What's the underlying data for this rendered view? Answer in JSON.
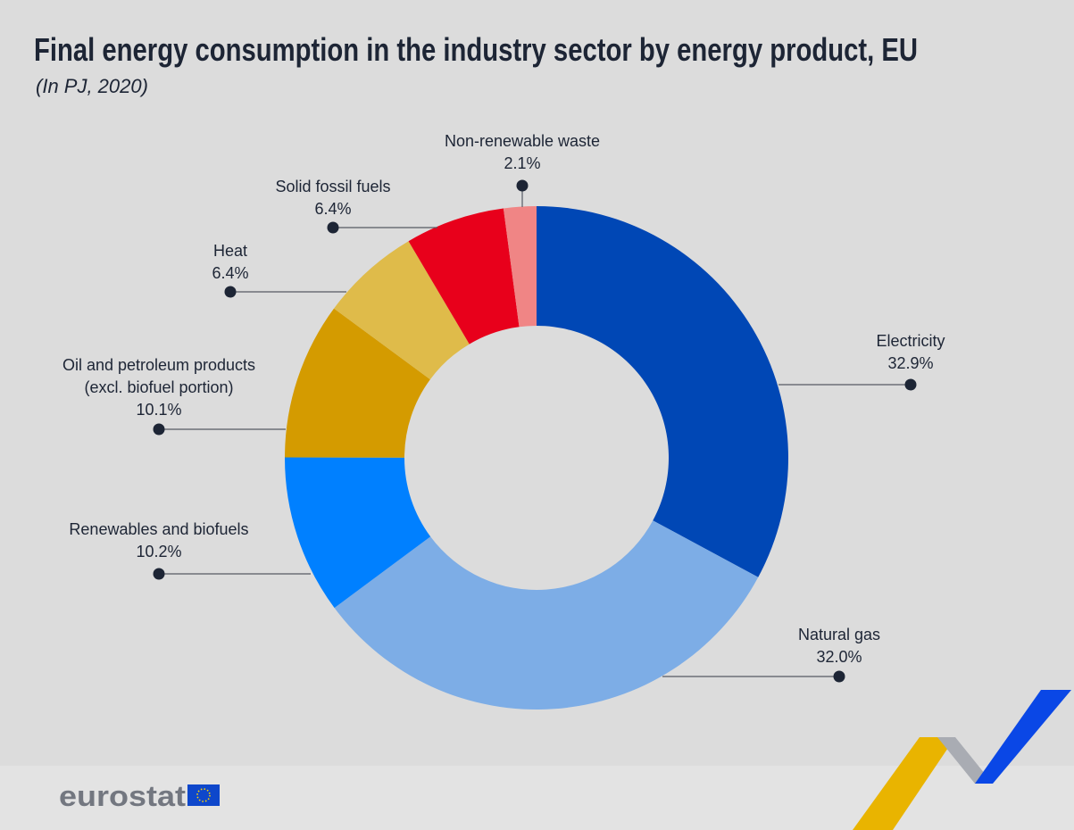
{
  "title": "Final energy consumption in the industry sector by energy product, EU",
  "subtitle": "(In PJ, 2020)",
  "logo": {
    "text": "eurostat"
  },
  "chart_data": {
    "type": "pie",
    "donut": true,
    "title": "Final energy consumption in the industry sector by energy product, EU",
    "subtitle": "(In PJ, 2020)",
    "unit": "%",
    "direction": "clockwise from top",
    "slices": [
      {
        "label": "Electricity",
        "value": 32.9,
        "value_label": "32.9%",
        "color": "#0047b5"
      },
      {
        "label": "Natural gas",
        "value": 32.0,
        "value_label": "32.0%",
        "color": "#7dade6"
      },
      {
        "label": "Renewables and biofuels",
        "value": 10.2,
        "value_label": "10.2%",
        "color": "#0080ff"
      },
      {
        "label": "Oil and petroleum products (excl. biofuel portion)",
        "label_lines": [
          "Oil and petroleum products",
          "(excl. biofuel portion)"
        ],
        "value": 10.1,
        "value_label": "10.1%",
        "color": "#d49b00"
      },
      {
        "label": "Heat",
        "value": 6.4,
        "value_label": "6.4%",
        "color": "#dfbb4a"
      },
      {
        "label": "Solid fossil fuels",
        "value": 6.4,
        "value_label": "6.4%",
        "color": "#e8001b"
      },
      {
        "label": "Non-renewable waste",
        "value": 2.1,
        "value_label": "2.1%",
        "color": "#f08585"
      }
    ]
  }
}
